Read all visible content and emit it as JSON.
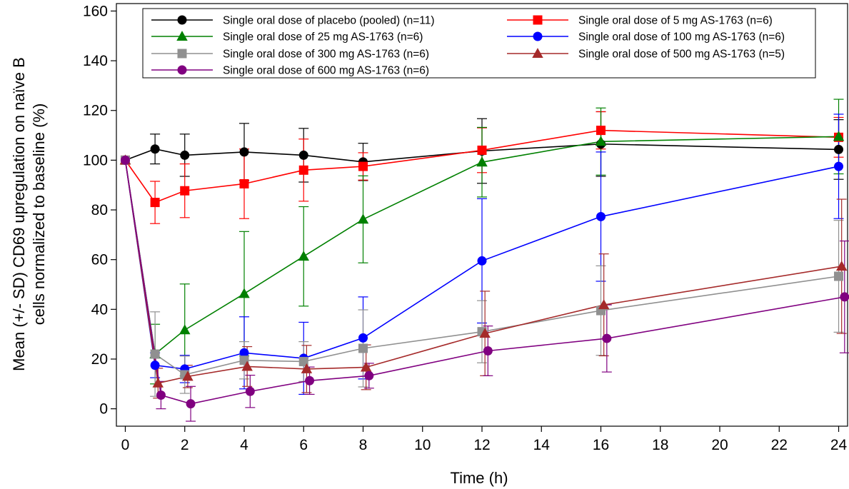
{
  "chart_data": {
    "type": "line",
    "title": "",
    "xlabel": "Time (h)",
    "ylabel_lines": [
      "Mean (+/- SD) CD69 upregulation on naïve B",
      "cells normalized to baseline (%)"
    ],
    "xlim": [
      -0.3,
      24.3
    ],
    "ylim": [
      -7,
      163
    ],
    "xticks": [
      0,
      2,
      4,
      6,
      8,
      10,
      12,
      14,
      16,
      18,
      20,
      22,
      24
    ],
    "yticks": [
      0,
      20,
      40,
      60,
      80,
      100,
      120,
      140,
      160
    ],
    "grid": false,
    "legend_position": "top",
    "series": [
      {
        "name": "Single oral dose of placebo (pooled) (n=11)",
        "color": "#000000",
        "marker": "circle",
        "offset": 0,
        "x": [
          0,
          1,
          2,
          4,
          6,
          8,
          12,
          16,
          24
        ],
        "y": [
          100,
          104.5,
          102,
          103.3,
          102,
          99.3,
          103.7,
          106.5,
          104.3
        ],
        "sd": [
          0,
          6,
          8.5,
          11.5,
          10.8,
          7.5,
          13,
          13,
          12
        ]
      },
      {
        "name": "Single oral dose of 5 mg AS-1763 (n=6)",
        "color": "#ff0000",
        "marker": "square",
        "offset": 0,
        "x": [
          0,
          1,
          2,
          4,
          6,
          8,
          12,
          16,
          24
        ],
        "y": [
          100,
          83,
          87.7,
          90.5,
          96,
          97.5,
          104,
          112,
          109.2
        ],
        "sd": [
          0,
          8.5,
          10.8,
          14,
          12.5,
          5.5,
          9,
          7.5,
          8
        ]
      },
      {
        "name": "Single oral dose of 25 mg AS-1763 (n=6)",
        "color": "#008000",
        "marker": "triangle",
        "offset": 0,
        "x": [
          0,
          1,
          2,
          4,
          6,
          8,
          12,
          16,
          24
        ],
        "y": [
          100,
          22,
          31.7,
          46.3,
          61.3,
          76.2,
          99.2,
          107.5,
          109.5
        ],
        "sd": [
          0,
          12,
          18.5,
          25,
          20,
          17.5,
          14,
          13.5,
          15
        ]
      },
      {
        "name": "Single oral dose of 100 mg AS-1763 (n=6)",
        "color": "#0000ff",
        "marker": "circle",
        "offset": 0,
        "x": [
          0,
          1,
          2,
          4,
          6,
          8,
          12,
          16,
          24
        ],
        "y": [
          100,
          17.5,
          16,
          22.5,
          20.3,
          28.5,
          59.5,
          77.3,
          97.5
        ],
        "sd": [
          0,
          5,
          5.5,
          14.5,
          14.5,
          16.5,
          25,
          26,
          21
        ]
      },
      {
        "name": "Single oral dose of 300 mg AS-1763 (n=6)",
        "color": "#909090",
        "marker": "square",
        "offset": 0,
        "x": [
          0,
          1,
          2,
          4,
          6,
          8,
          12,
          16,
          24
        ],
        "y": [
          100,
          22,
          13.7,
          19.5,
          19,
          24.3,
          31,
          39.5,
          53.3
        ],
        "sd": [
          0,
          17,
          7.5,
          7.5,
          8,
          15.5,
          12.5,
          18,
          22.5
        ]
      },
      {
        "name": "Single oral dose of 500 mg AS-1763 (n=5)",
        "color": "#a52a2a",
        "marker": "triangle",
        "offset": 0.1,
        "x": [
          0,
          1,
          2,
          4,
          6,
          8,
          12,
          16,
          24
        ],
        "y": [
          100,
          10.3,
          13,
          17,
          16,
          16.7,
          30.3,
          41.8,
          57.3
        ],
        "sd": [
          0,
          6,
          4.5,
          8,
          9.5,
          9,
          17,
          20.5,
          27
        ]
      },
      {
        "name": "Single oral dose of 600 mg AS-1763 (n=6)",
        "color": "#800080",
        "marker": "circle",
        "offset": 0.2,
        "x": [
          0,
          1,
          2,
          4,
          6,
          8,
          12,
          16,
          24
        ],
        "y": [
          100,
          5.5,
          2,
          7,
          11.3,
          13.3,
          23.3,
          28.3,
          45
        ],
        "sd": [
          0,
          5.5,
          7,
          6.5,
          5.5,
          5,
          10,
          13.5,
          22.5
        ]
      }
    ]
  }
}
